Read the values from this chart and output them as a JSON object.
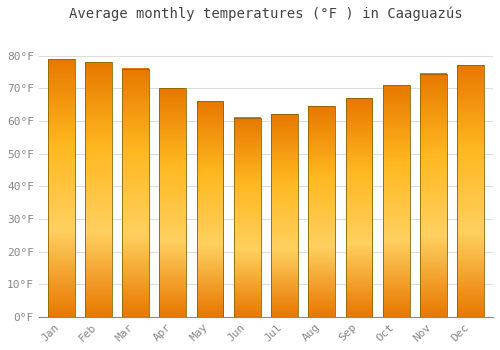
{
  "title": "Average monthly temperatures (°F ) in Caaguazús",
  "months": [
    "Jan",
    "Feb",
    "Mar",
    "Apr",
    "May",
    "Jun",
    "Jul",
    "Aug",
    "Sep",
    "Oct",
    "Nov",
    "Dec"
  ],
  "values": [
    79,
    78,
    76,
    70,
    66,
    61,
    62,
    64.5,
    67,
    71,
    74.5,
    77
  ],
  "bar_color_top": "#FFA500",
  "bar_color_bottom": "#FFD060",
  "bar_edge_color": "#CC8800",
  "background_color": "#FFFFFF",
  "grid_color": "#DDDDDD",
  "yticks": [
    0,
    10,
    20,
    30,
    40,
    50,
    60,
    70,
    80
  ],
  "ytick_labels": [
    "0°F",
    "10°F",
    "20°F",
    "30°F",
    "40°F",
    "50°F",
    "60°F",
    "70°F",
    "80°F"
  ],
  "ylim": [
    0,
    88
  ],
  "title_fontsize": 10,
  "tick_fontsize": 8,
  "font_family": "monospace"
}
